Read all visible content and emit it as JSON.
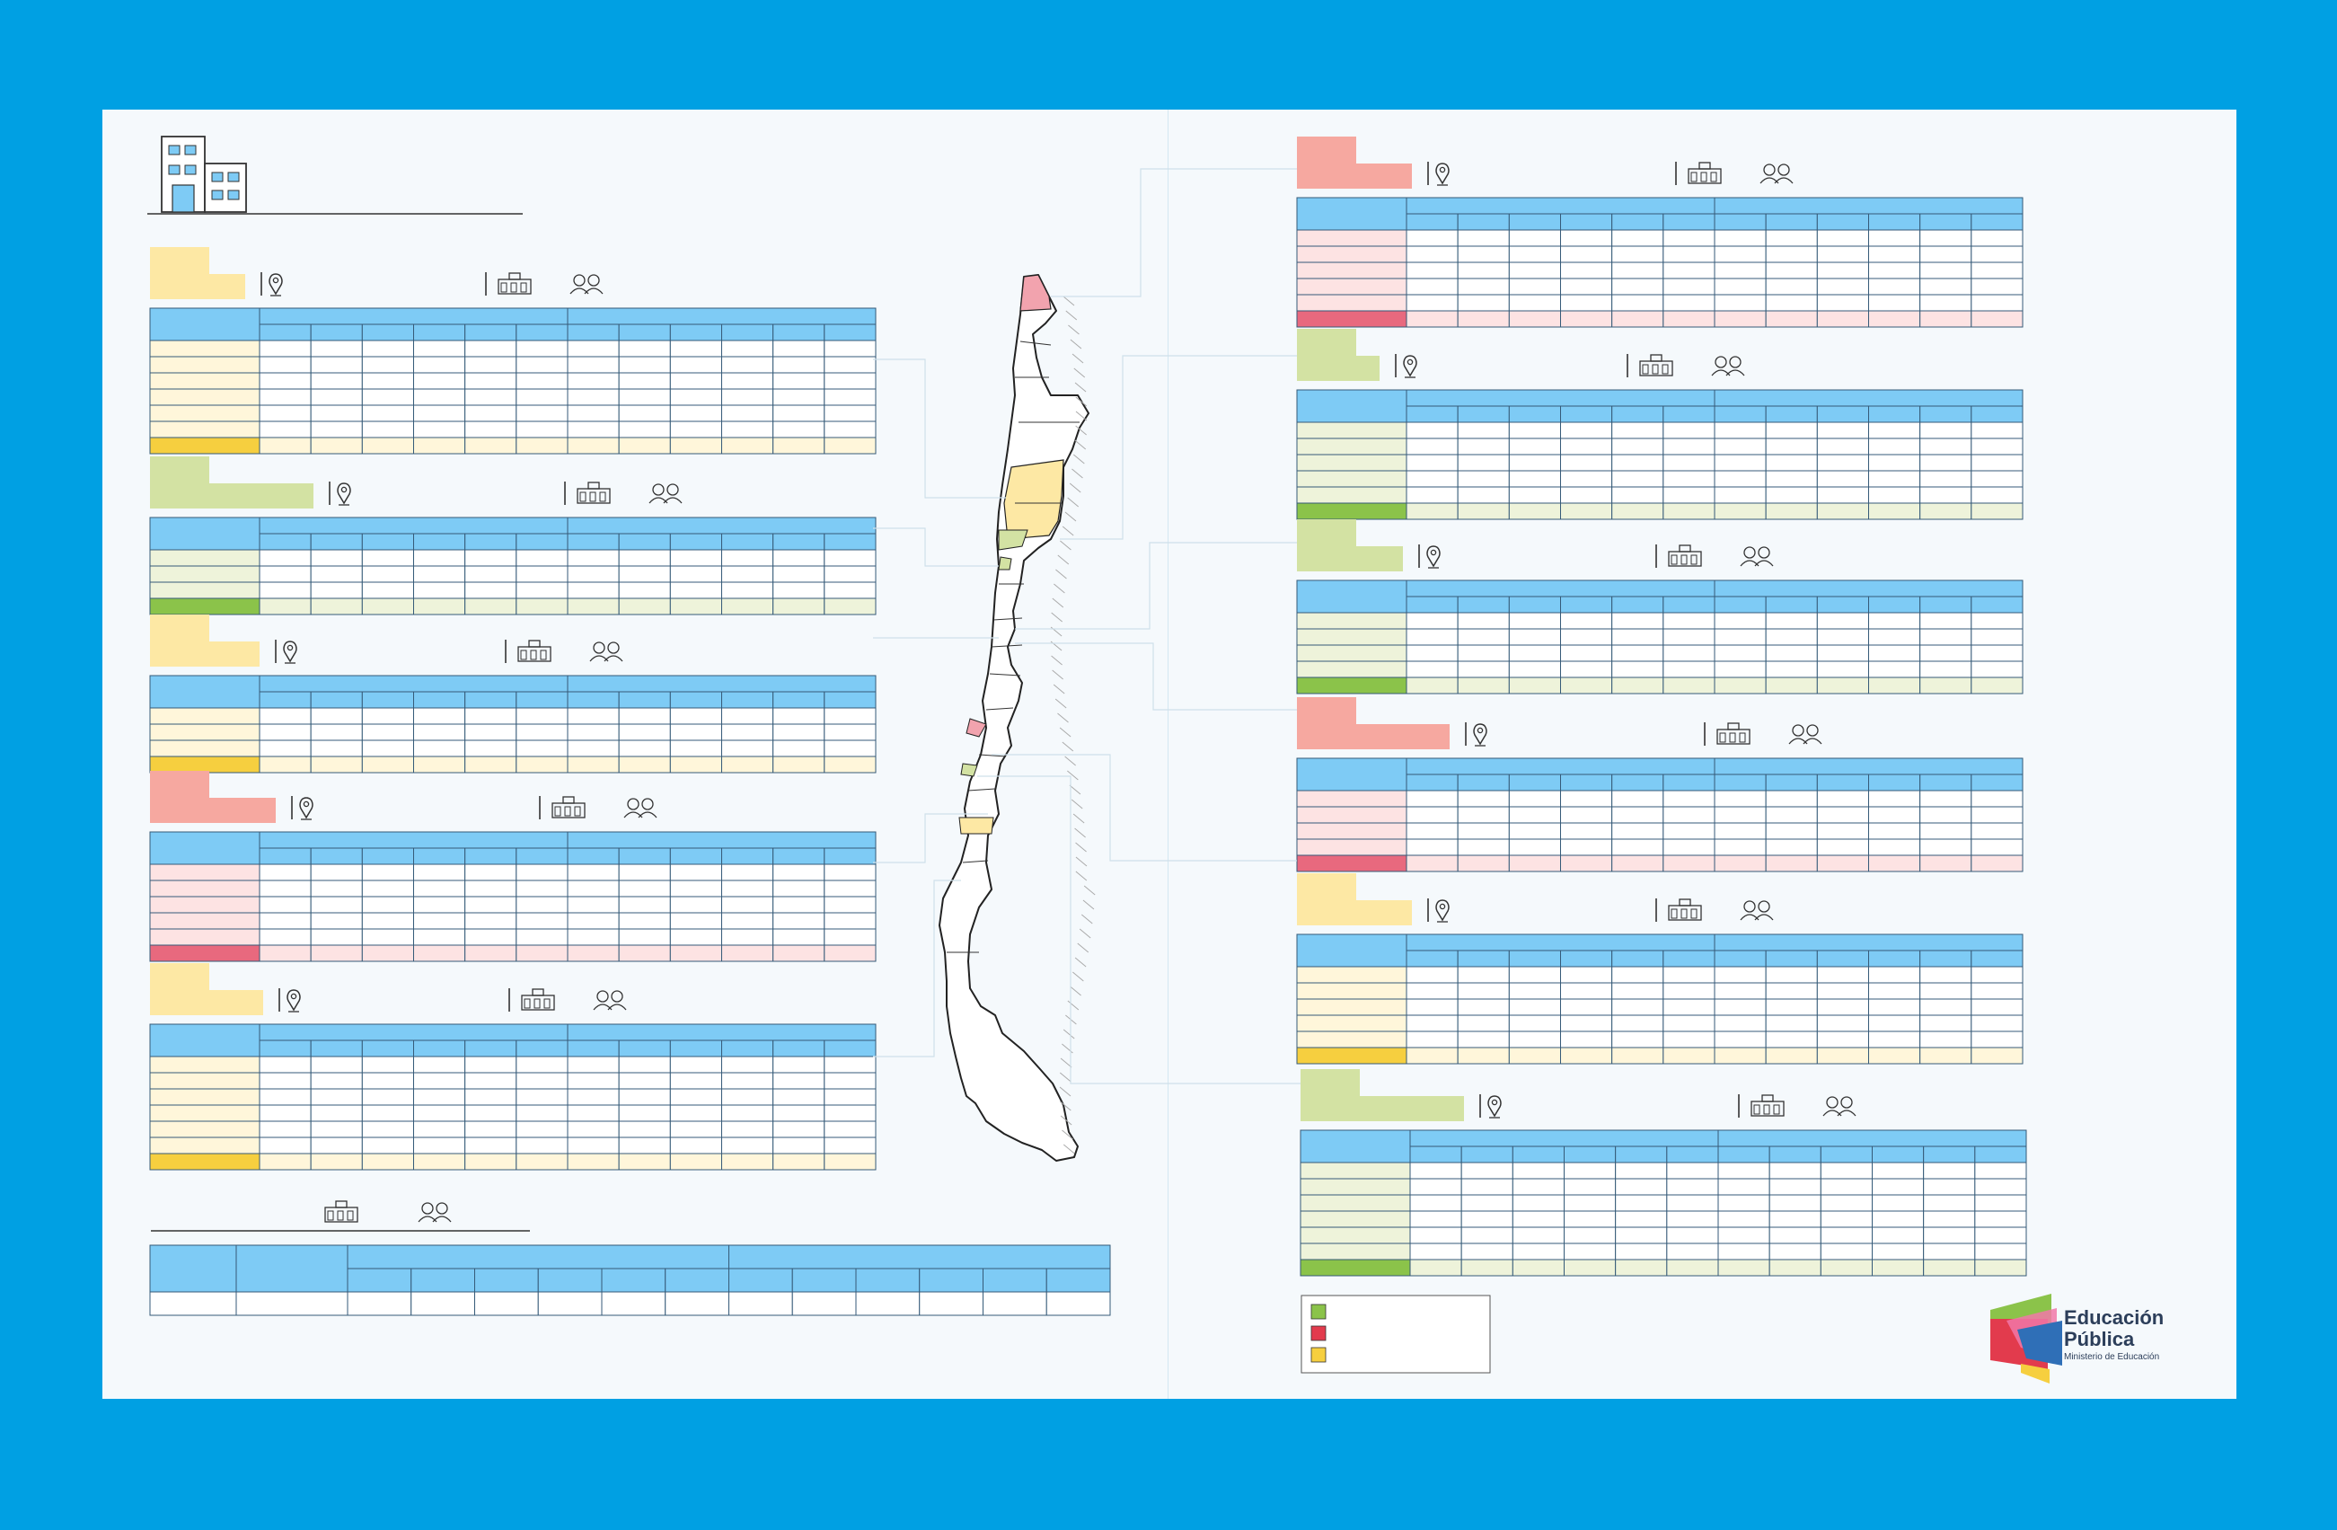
{
  "palette": {
    "frame": "#00a0e3",
    "header_blue": "#7ecbf5",
    "yellow_light": "#fde8a4",
    "yellow_row": "#fff6da",
    "yellow_dark": "#f6cf3f",
    "green_light": "#d3e2a3",
    "green_row": "#eef3da",
    "green_dark": "#8bc34a",
    "red_light": "#f6a8a0",
    "red_row": "#fde3e3",
    "red_dark": "#e8697e"
  },
  "icons": [
    "building-icon",
    "location-pin-icon",
    "school-icon",
    "people-icon"
  ],
  "left_tables": [
    {
      "theme": "yellow",
      "rows": 6
    },
    {
      "theme": "green",
      "rows": 3
    },
    {
      "theme": "yellow",
      "rows": 3
    },
    {
      "theme": "red",
      "rows": 5
    },
    {
      "theme": "yellow",
      "rows": 6
    }
  ],
  "right_tables": [
    {
      "theme": "red",
      "rows": 5
    },
    {
      "theme": "green",
      "rows": 5
    },
    {
      "theme": "green",
      "rows": 4
    },
    {
      "theme": "red",
      "rows": 4
    },
    {
      "theme": "yellow",
      "rows": 5
    },
    {
      "theme": "green",
      "rows": 6
    }
  ],
  "legend": [
    {
      "color": "#8bc34a"
    },
    {
      "color": "#e23b4d"
    },
    {
      "color": "#f6cf3f"
    }
  ],
  "logo": {
    "line1": "Educación",
    "line2": "Pública",
    "line3": "Ministerio de Educación"
  }
}
